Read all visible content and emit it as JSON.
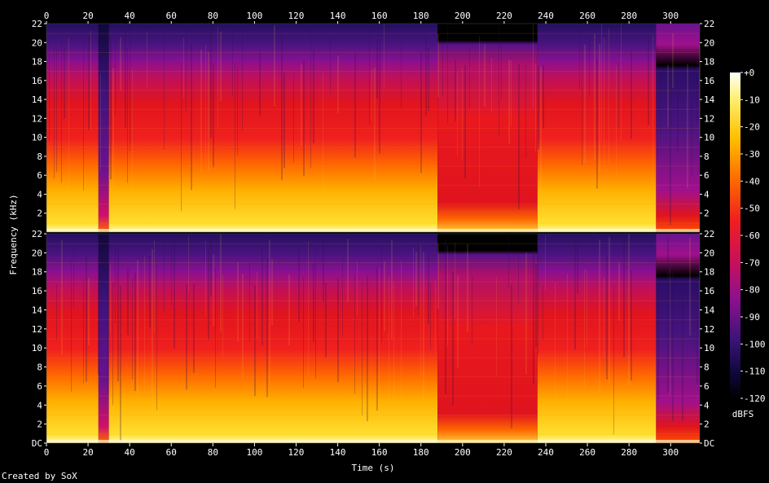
{
  "chart_data": {
    "type": "heatmap",
    "title": "",
    "xlabel": "Time (s)",
    "ylabel": "Frequency (kHz)",
    "xlim": [
      0,
      314
    ],
    "ylim": [
      0,
      22
    ],
    "x_ticks": [
      "0",
      "20",
      "40",
      "60",
      "80",
      "100",
      "120",
      "140",
      "160",
      "180",
      "200",
      "220",
      "240",
      "260",
      "280",
      "300"
    ],
    "y_ticks": [
      "DC",
      "2",
      "4",
      "6",
      "8",
      "10",
      "12",
      "14",
      "16",
      "18",
      "20",
      "22"
    ],
    "y_ticks_top_channel": [
      "2",
      "4",
      "6",
      "8",
      "10",
      "12",
      "14",
      "16",
      "18",
      "20",
      "22"
    ],
    "channels": 2,
    "colorbar": {
      "label": "dBFS",
      "ticks": [
        "+0",
        "-10",
        "-20",
        "-30",
        "-40",
        "-50",
        "-60",
        "-70",
        "-80",
        "-90",
        "-100",
        "-110",
        "-120"
      ],
      "range": [
        -120,
        0
      ]
    },
    "segments": [
      {
        "start": 0,
        "end": 25,
        "level": "loud"
      },
      {
        "start": 25,
        "end": 30,
        "level": "quiet"
      },
      {
        "start": 30,
        "end": 188,
        "level": "loud"
      },
      {
        "start": 188,
        "end": 236,
        "level": "lowpass"
      },
      {
        "start": 236,
        "end": 293,
        "level": "loud"
      },
      {
        "start": 293,
        "end": 314,
        "level": "fade"
      }
    ],
    "colors": {
      "background": "#000000",
      "high": "#ffffff",
      "yellow": "#ffd21e",
      "orange": "#ff7a00",
      "red": "#e8141e",
      "magenta": "#a0108c",
      "purple": "#42127a",
      "navy": "#0a0a30"
    }
  },
  "footer": {
    "credit": "Created by SoX"
  }
}
